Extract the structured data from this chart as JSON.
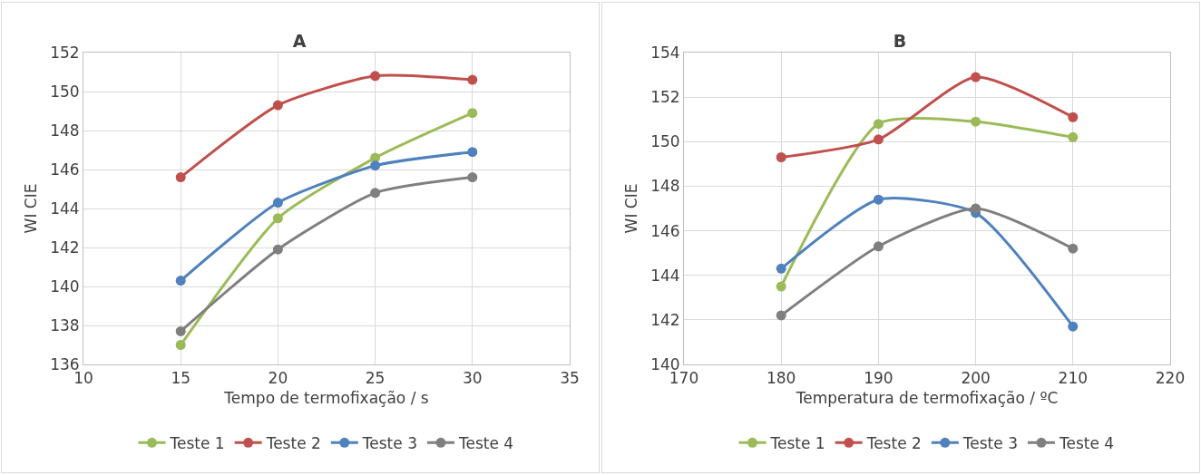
{
  "chart_data": [
    {
      "type": "line",
      "title": "A",
      "xlabel": "Tempo de termofixação / s",
      "ylabel": "WI CIE",
      "x": [
        15,
        20,
        25,
        30
      ],
      "xlim": [
        10,
        35
      ],
      "xticks": [
        10,
        15,
        20,
        25,
        30,
        35
      ],
      "ylim": [
        136,
        152
      ],
      "yticks": [
        136,
        138,
        140,
        142,
        144,
        146,
        148,
        150,
        152
      ],
      "grid": true,
      "legend": "bottom",
      "marker": "circle",
      "line_style": "solid",
      "series": [
        {
          "name": "Teste 1",
          "color": "#9bbb59",
          "values": [
            137.0,
            143.5,
            146.6,
            148.9
          ]
        },
        {
          "name": "Teste 2",
          "color": "#c0504d",
          "values": [
            145.6,
            149.3,
            150.8,
            150.6
          ]
        },
        {
          "name": "Teste 3",
          "color": "#4f81bd",
          "values": [
            140.3,
            144.3,
            146.2,
            146.9
          ]
        },
        {
          "name": "Teste 4",
          "color": "#7f7f7f",
          "values": [
            137.7,
            141.9,
            144.8,
            145.6
          ]
        }
      ]
    },
    {
      "type": "line",
      "title": "B",
      "xlabel": "Temperatura de termofixação / ºC",
      "ylabel": "WI CIE",
      "x": [
        180,
        190,
        200,
        210
      ],
      "xlim": [
        170,
        220
      ],
      "xticks": [
        170,
        180,
        190,
        200,
        210,
        220
      ],
      "ylim": [
        140,
        154
      ],
      "yticks": [
        140,
        142,
        144,
        146,
        148,
        150,
        152,
        154
      ],
      "grid": true,
      "legend": "bottom",
      "marker": "circle",
      "line_style": "solid",
      "series": [
        {
          "name": "Teste 1",
          "color": "#9bbb59",
          "values": [
            143.5,
            150.8,
            150.9,
            150.2
          ]
        },
        {
          "name": "Teste 2",
          "color": "#c0504d",
          "values": [
            149.3,
            150.1,
            152.9,
            151.1
          ]
        },
        {
          "name": "Teste 3",
          "color": "#4f81bd",
          "values": [
            144.3,
            147.4,
            146.8,
            141.7
          ]
        },
        {
          "name": "Teste 4",
          "color": "#7f7f7f",
          "values": [
            142.2,
            145.3,
            147.0,
            145.2
          ]
        }
      ]
    }
  ]
}
